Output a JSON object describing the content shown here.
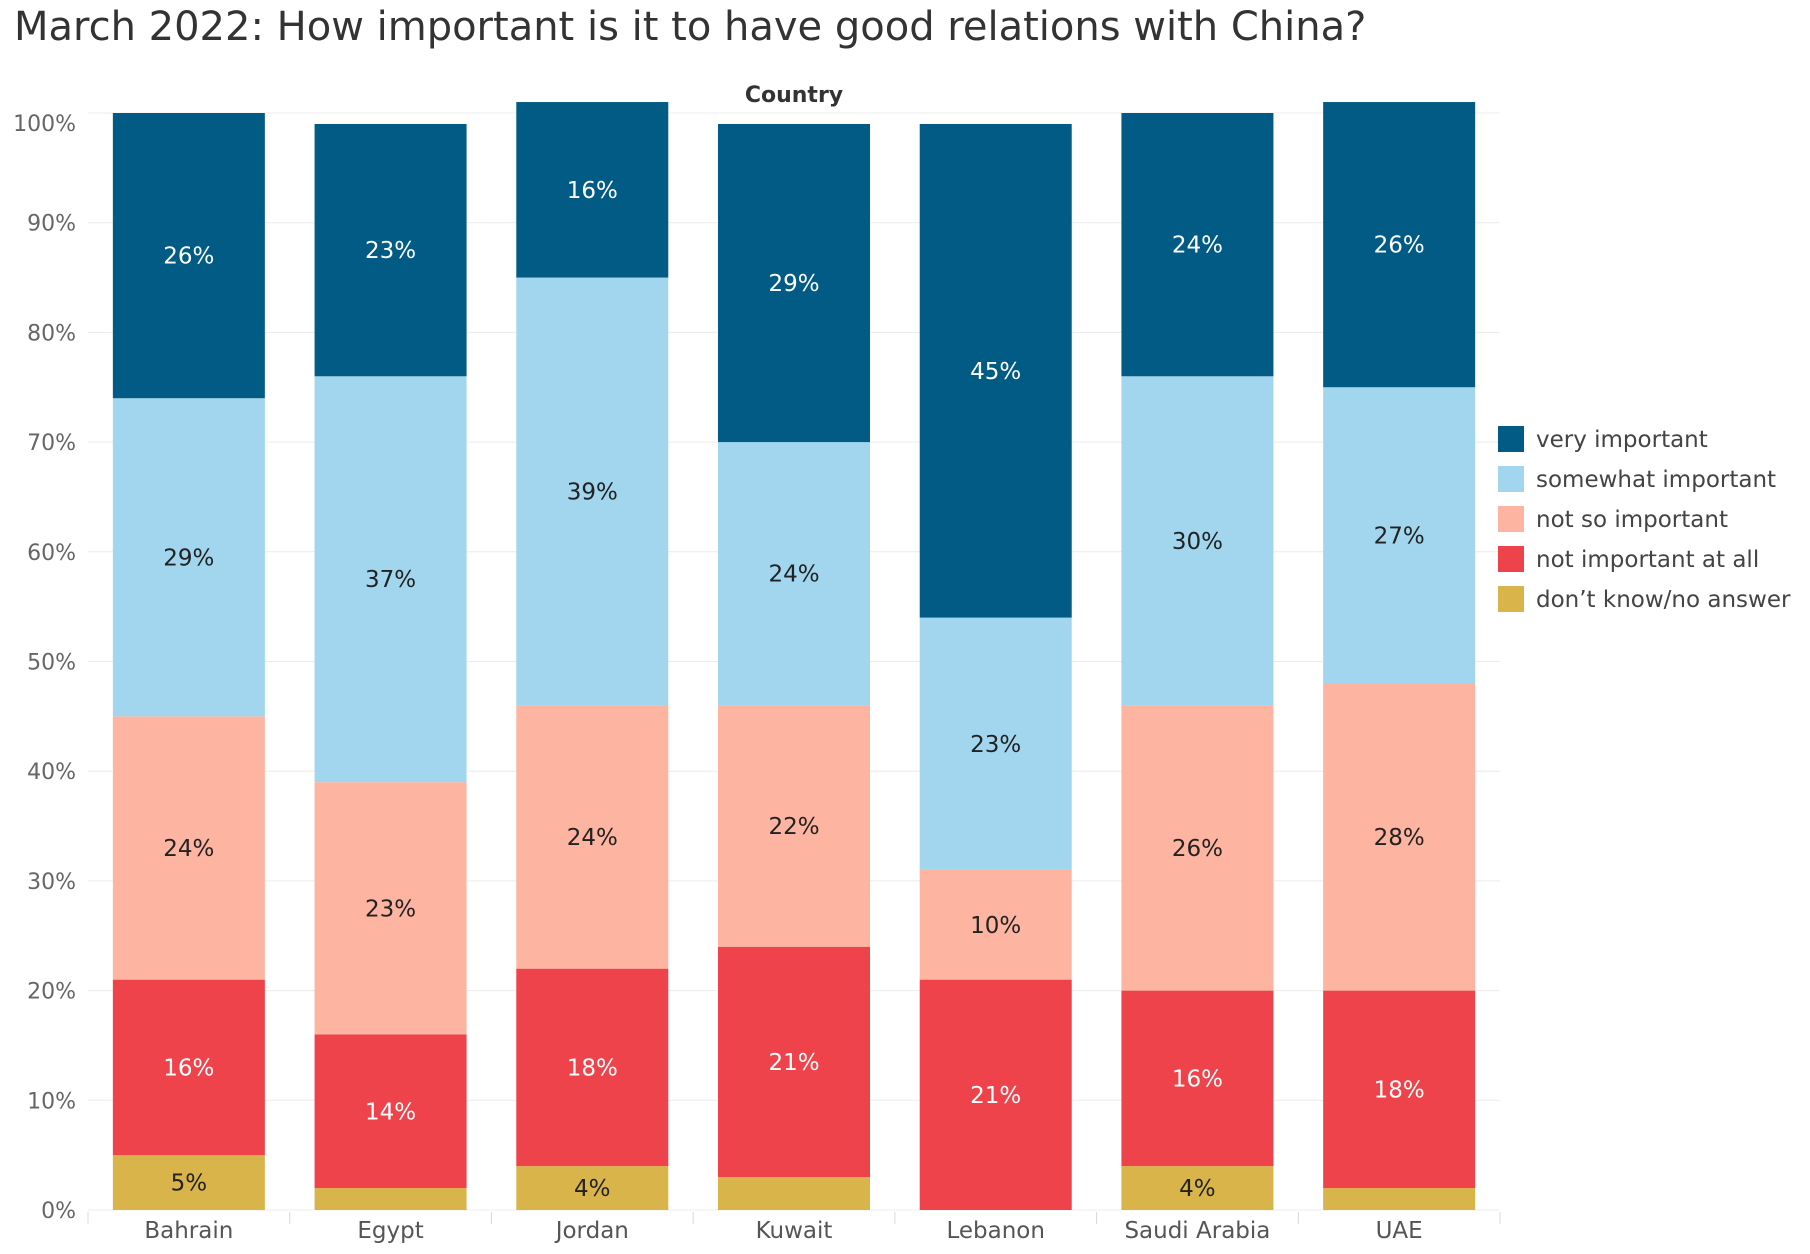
{
  "title": "March 2022: How important is it to have good relations with China?",
  "chart_data": {
    "type": "bar",
    "stacked": true,
    "column_header": "Country",
    "categories": [
      "Bahrain",
      "Egypt",
      "Jordan",
      "Kuwait",
      "Lebanon",
      "Saudi Arabia",
      "UAE"
    ],
    "ylim": [
      0,
      100
    ],
    "yticks": [
      "0%",
      "10%",
      "20%",
      "30%",
      "40%",
      "50%",
      "60%",
      "70%",
      "80%",
      "90%",
      "100%"
    ],
    "grid": true,
    "legend_position": "right",
    "series": [
      {
        "name": "don’t know/no answer",
        "color": "#D8B44A",
        "label_color": "#222222",
        "values": [
          5,
          2,
          4,
          3,
          0,
          4,
          2
        ],
        "labels": [
          "5%",
          "",
          "4%",
          "",
          "",
          "4%",
          ""
        ]
      },
      {
        "name": "not important at all",
        "color": "#EE434B",
        "label_color": "#ffffff",
        "values": [
          16,
          14,
          18,
          21,
          21,
          16,
          18
        ],
        "labels": [
          "16%",
          "14%",
          "18%",
          "21%",
          "21%",
          "16%",
          "18%"
        ]
      },
      {
        "name": "not so important",
        "color": "#FDB4A0",
        "label_color": "#222222",
        "values": [
          24,
          23,
          24,
          22,
          10,
          26,
          28
        ],
        "labels": [
          "24%",
          "23%",
          "24%",
          "22%",
          "10%",
          "26%",
          "28%"
        ]
      },
      {
        "name": "somewhat important",
        "color": "#A1D6EE",
        "label_color": "#222222",
        "values": [
          29,
          37,
          39,
          24,
          23,
          30,
          27
        ],
        "labels": [
          "29%",
          "37%",
          "39%",
          "24%",
          "23%",
          "30%",
          "27%"
        ]
      },
      {
        "name": "very important",
        "color": "#015B84",
        "label_color": "#ffffff",
        "values": [
          26,
          23,
          16,
          29,
          45,
          24,
          26
        ],
        "labels": [
          "26%",
          "23%",
          "16%",
          "29%",
          "45%",
          "24%",
          "26%"
        ]
      }
    ],
    "legend_order": [
      "very important",
      "somewhat important",
      "not so important",
      "not important at all",
      "don’t know/no answer"
    ]
  }
}
